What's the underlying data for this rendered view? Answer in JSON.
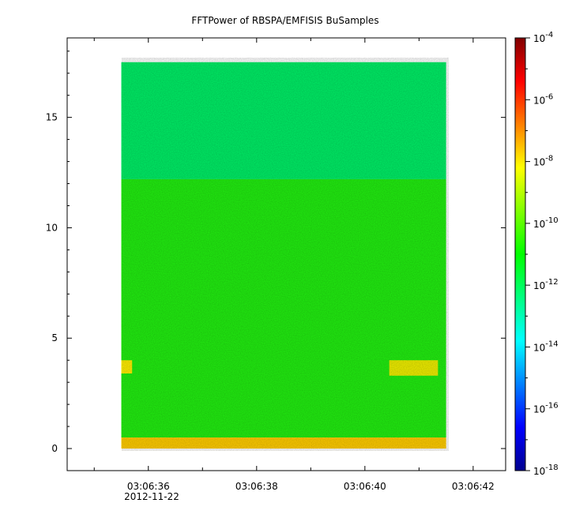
{
  "chart_data": {
    "type": "heatmap",
    "title": "FFTPower of RBSPA/EMFISIS  BuSamples",
    "xlabel": "",
    "ylabel": "",
    "x_ticks": [
      "03:06:36",
      "03:06:38",
      "03:06:40",
      "03:06:42"
    ],
    "x_date_label": "2012-11-22",
    "x_range_seconds": [
      34.5,
      42.6
    ],
    "data_x_range_seconds": [
      35.5,
      41.5
    ],
    "y_ticks": [
      0,
      5,
      10,
      15
    ],
    "ylim": [
      -1.0,
      18.6
    ],
    "colorbar": {
      "scale": "log",
      "range": [
        1e-18,
        0.0001
      ],
      "tick_labels": [
        "-18",
        "-16",
        "-14",
        "-12",
        "-10",
        "-8",
        "-6",
        "-4"
      ],
      "tick_base": "10",
      "colormap": [
        "#00008f",
        "#0000ff",
        "#0080ff",
        "#00ffff",
        "#00ff80",
        "#00ff00",
        "#80ff00",
        "#ffff00",
        "#ff8000",
        "#ff0000",
        "#800000"
      ]
    },
    "regions": [
      {
        "x": [
          35.5,
          41.5
        ],
        "y": [
          12.2,
          17.5
        ],
        "log_power": -11.8,
        "color": "#00ee66"
      },
      {
        "x": [
          35.5,
          41.5
        ],
        "y": [
          0.5,
          12.2
        ],
        "log_power": -10.6,
        "color": "#22ee11"
      },
      {
        "x": [
          35.5,
          41.5
        ],
        "y": [
          0.0,
          0.5
        ],
        "log_power": -8.3,
        "color": "#ffcc00"
      },
      {
        "x": [
          35.5,
          35.7
        ],
        "y": [
          3.4,
          4.0
        ],
        "log_power": -8.8,
        "color": "#ffee00"
      },
      {
        "x": [
          40.45,
          41.35
        ],
        "y": [
          3.3,
          4.0
        ],
        "log_power": -8.8,
        "color": "#eeee00"
      }
    ]
  }
}
